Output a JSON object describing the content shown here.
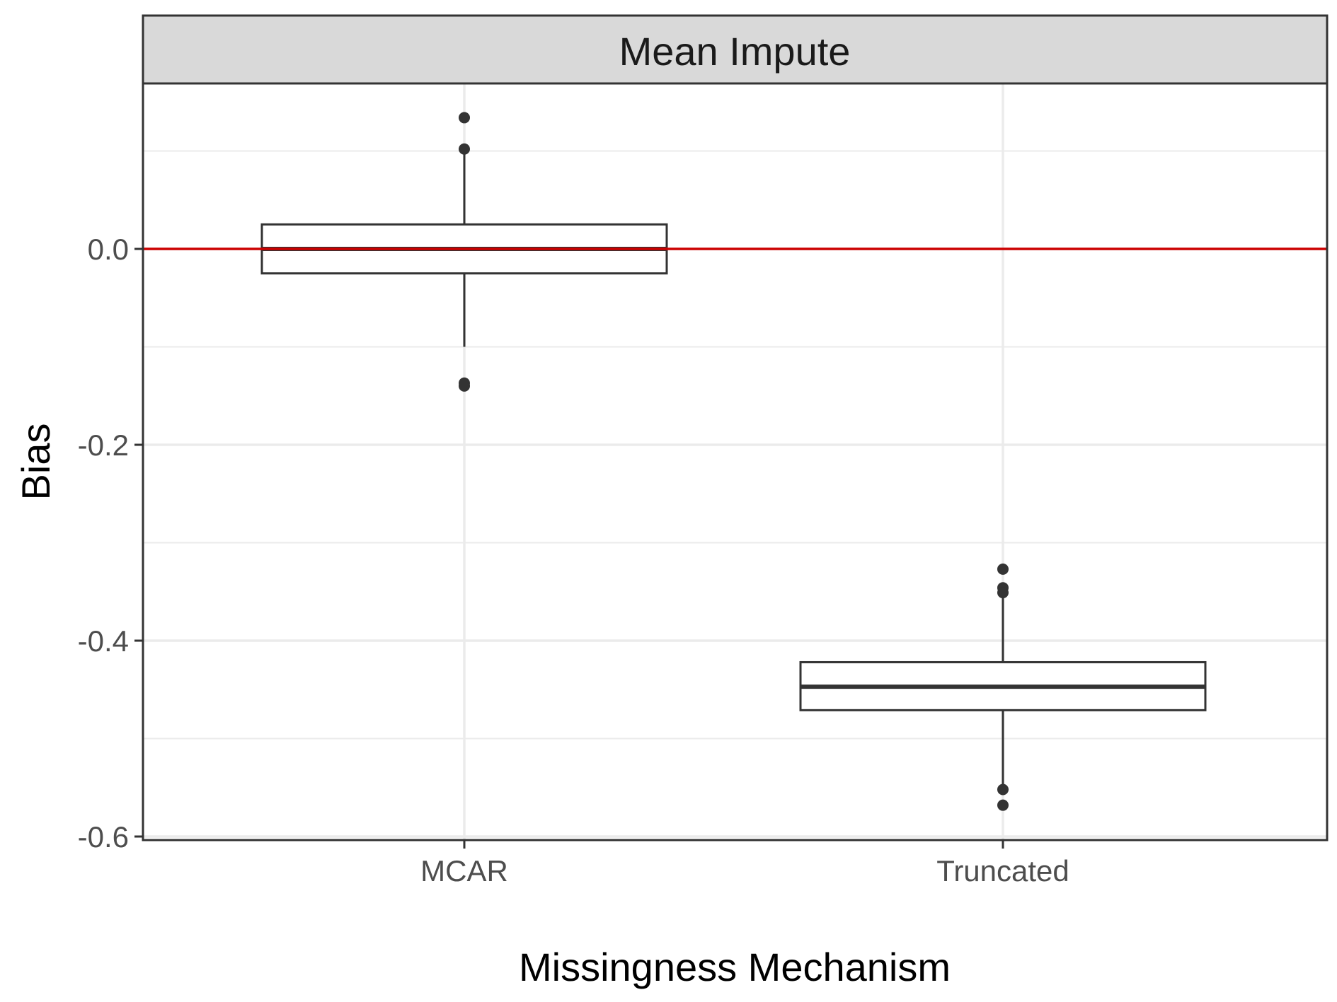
{
  "chart_data": {
    "type": "boxplot",
    "title": "",
    "facet_label": "Mean Impute",
    "xlabel": "Missingness Mechanism",
    "ylabel": "Bias",
    "categories": [
      "MCAR",
      "Truncated"
    ],
    "ylim": [
      -0.6,
      0.16
    ],
    "yticks": [
      0.0,
      -0.2,
      -0.4,
      -0.6
    ],
    "ytick_labels": [
      "0.0",
      "-0.2",
      "-0.4",
      "-0.6"
    ],
    "reference_line": {
      "y": 0.0,
      "color": "#cc0000"
    },
    "boxes": [
      {
        "category": "MCAR",
        "whisker_low": -0.1,
        "q1": -0.025,
        "median": 0.0,
        "q3": 0.025,
        "whisker_high": 0.1,
        "outliers": [
          0.134,
          0.102,
          -0.137,
          -0.14
        ]
      },
      {
        "category": "Truncated",
        "whisker_low": -0.55,
        "q1": -0.471,
        "median": -0.447,
        "q3": -0.422,
        "whisker_high": -0.355,
        "outliers": [
          -0.327,
          -0.346,
          -0.351,
          -0.552,
          -0.568
        ]
      }
    ],
    "grid": true,
    "legend": "none",
    "colors": {
      "box_stroke": "#333333",
      "grid": "#ebebeb",
      "strip_fill": "#d9d9d9",
      "panel_border": "#333333"
    }
  }
}
